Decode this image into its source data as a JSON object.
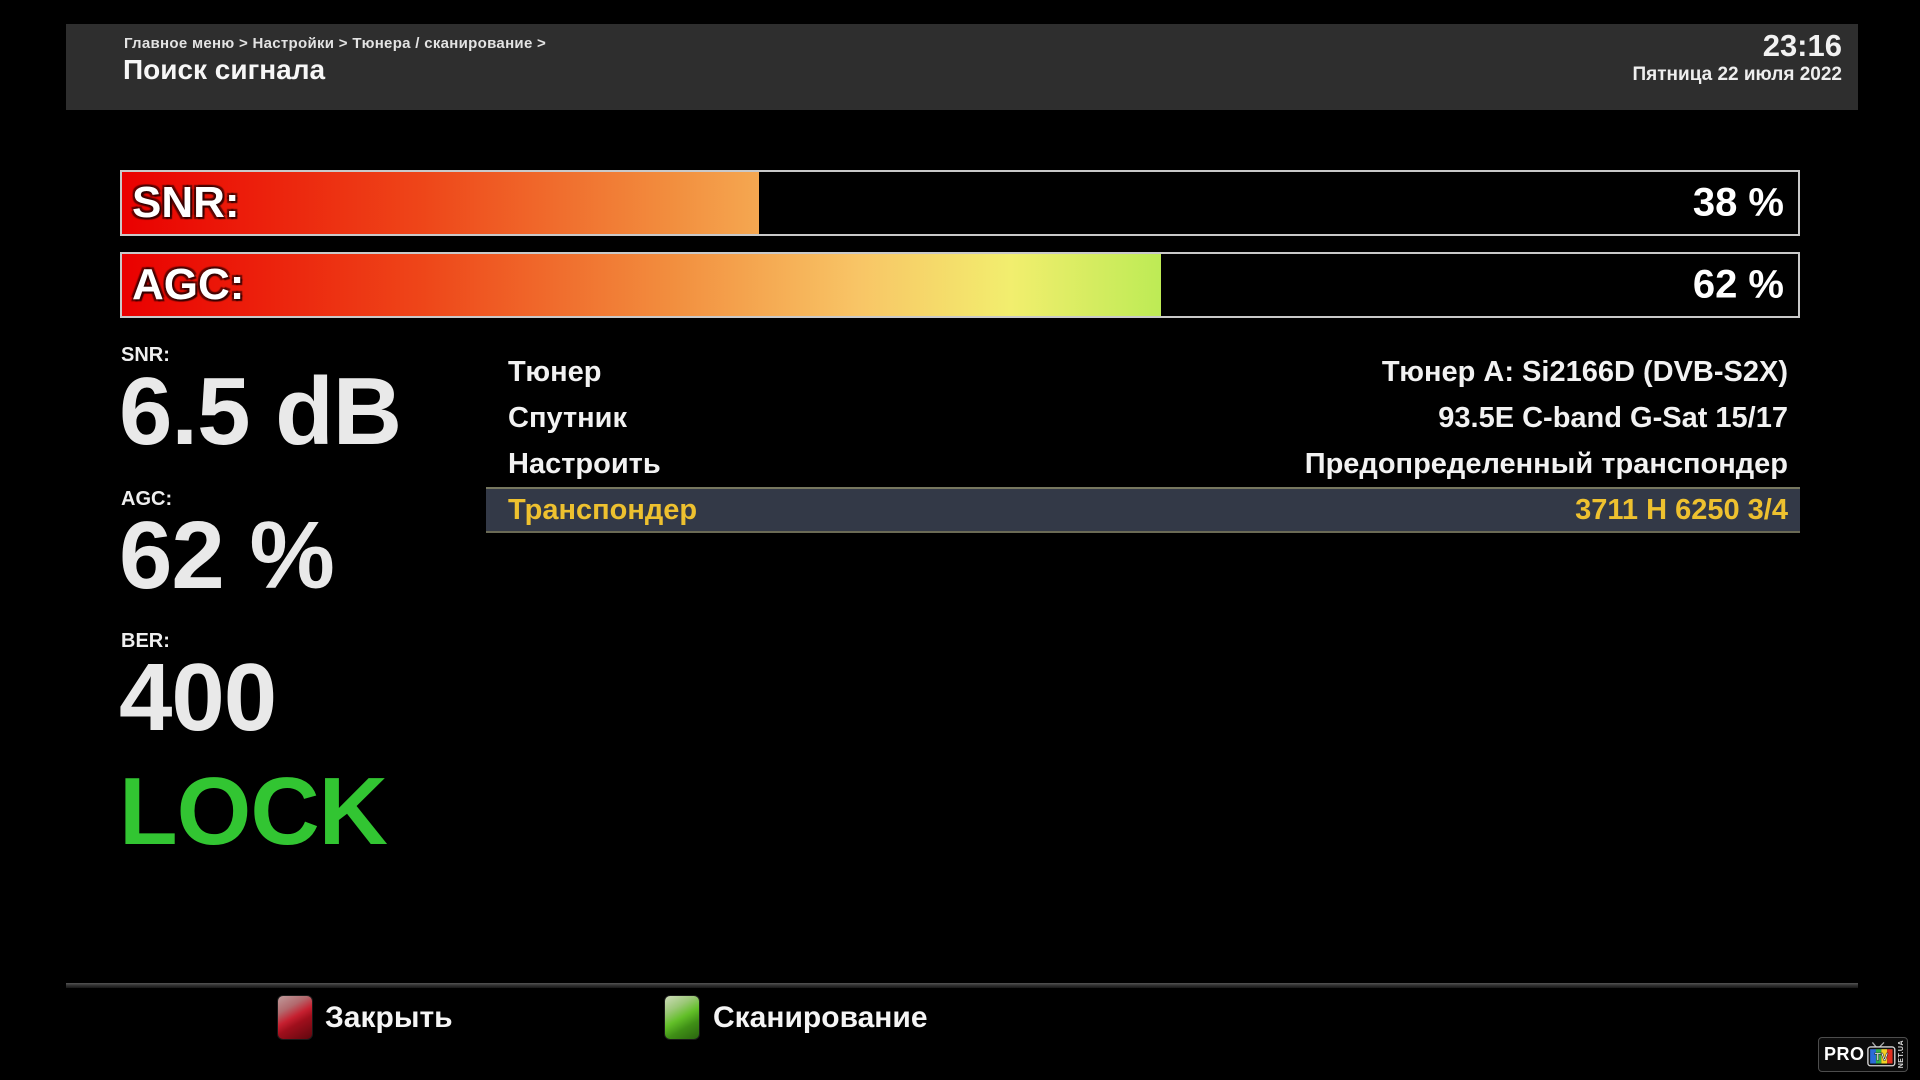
{
  "header": {
    "breadcrumb": "Главное меню > Настройки > Тюнера / сканирование >",
    "title": "Поиск сигнала",
    "time": "23:16",
    "date": "Пятница 22 июля 2022"
  },
  "signal_bars": [
    {
      "label": "SNR:",
      "percent": 38,
      "display": "38 %"
    },
    {
      "label": "AGC:",
      "percent": 62,
      "display": "62 %"
    }
  ],
  "stats": [
    {
      "label": "SNR:",
      "value": "6.5 dB"
    },
    {
      "label": "AGC:",
      "value": "62 %"
    },
    {
      "label": "BER:",
      "value": "400"
    }
  ],
  "lock_status": "LOCK",
  "settings_rows": [
    {
      "label": "Тюнер",
      "value": "Тюнер A: Si2166D (DVB-S2X)"
    },
    {
      "label": "Спутник",
      "value": "93.5E C-band G-Sat 15/17"
    },
    {
      "label": "Настроить",
      "value": "Предопределенный транспондер"
    },
    {
      "label": "Транспондер",
      "value": "3711 H 6250 3/4",
      "selected": true
    }
  ],
  "footer": {
    "close_label": "Закрыть",
    "scan_label": "Сканирование"
  },
  "logo": {
    "pro": "PRO",
    "tv": "TV",
    "net": "NET.UA"
  },
  "colors": {
    "lock_green": "#32c532",
    "selected_yellow": "#eec12f",
    "bar_start_red": "#ea0000",
    "bar_end_green": "#bdeb55",
    "close_button_red": "#c62030",
    "scan_button_green": "#62bf28"
  }
}
